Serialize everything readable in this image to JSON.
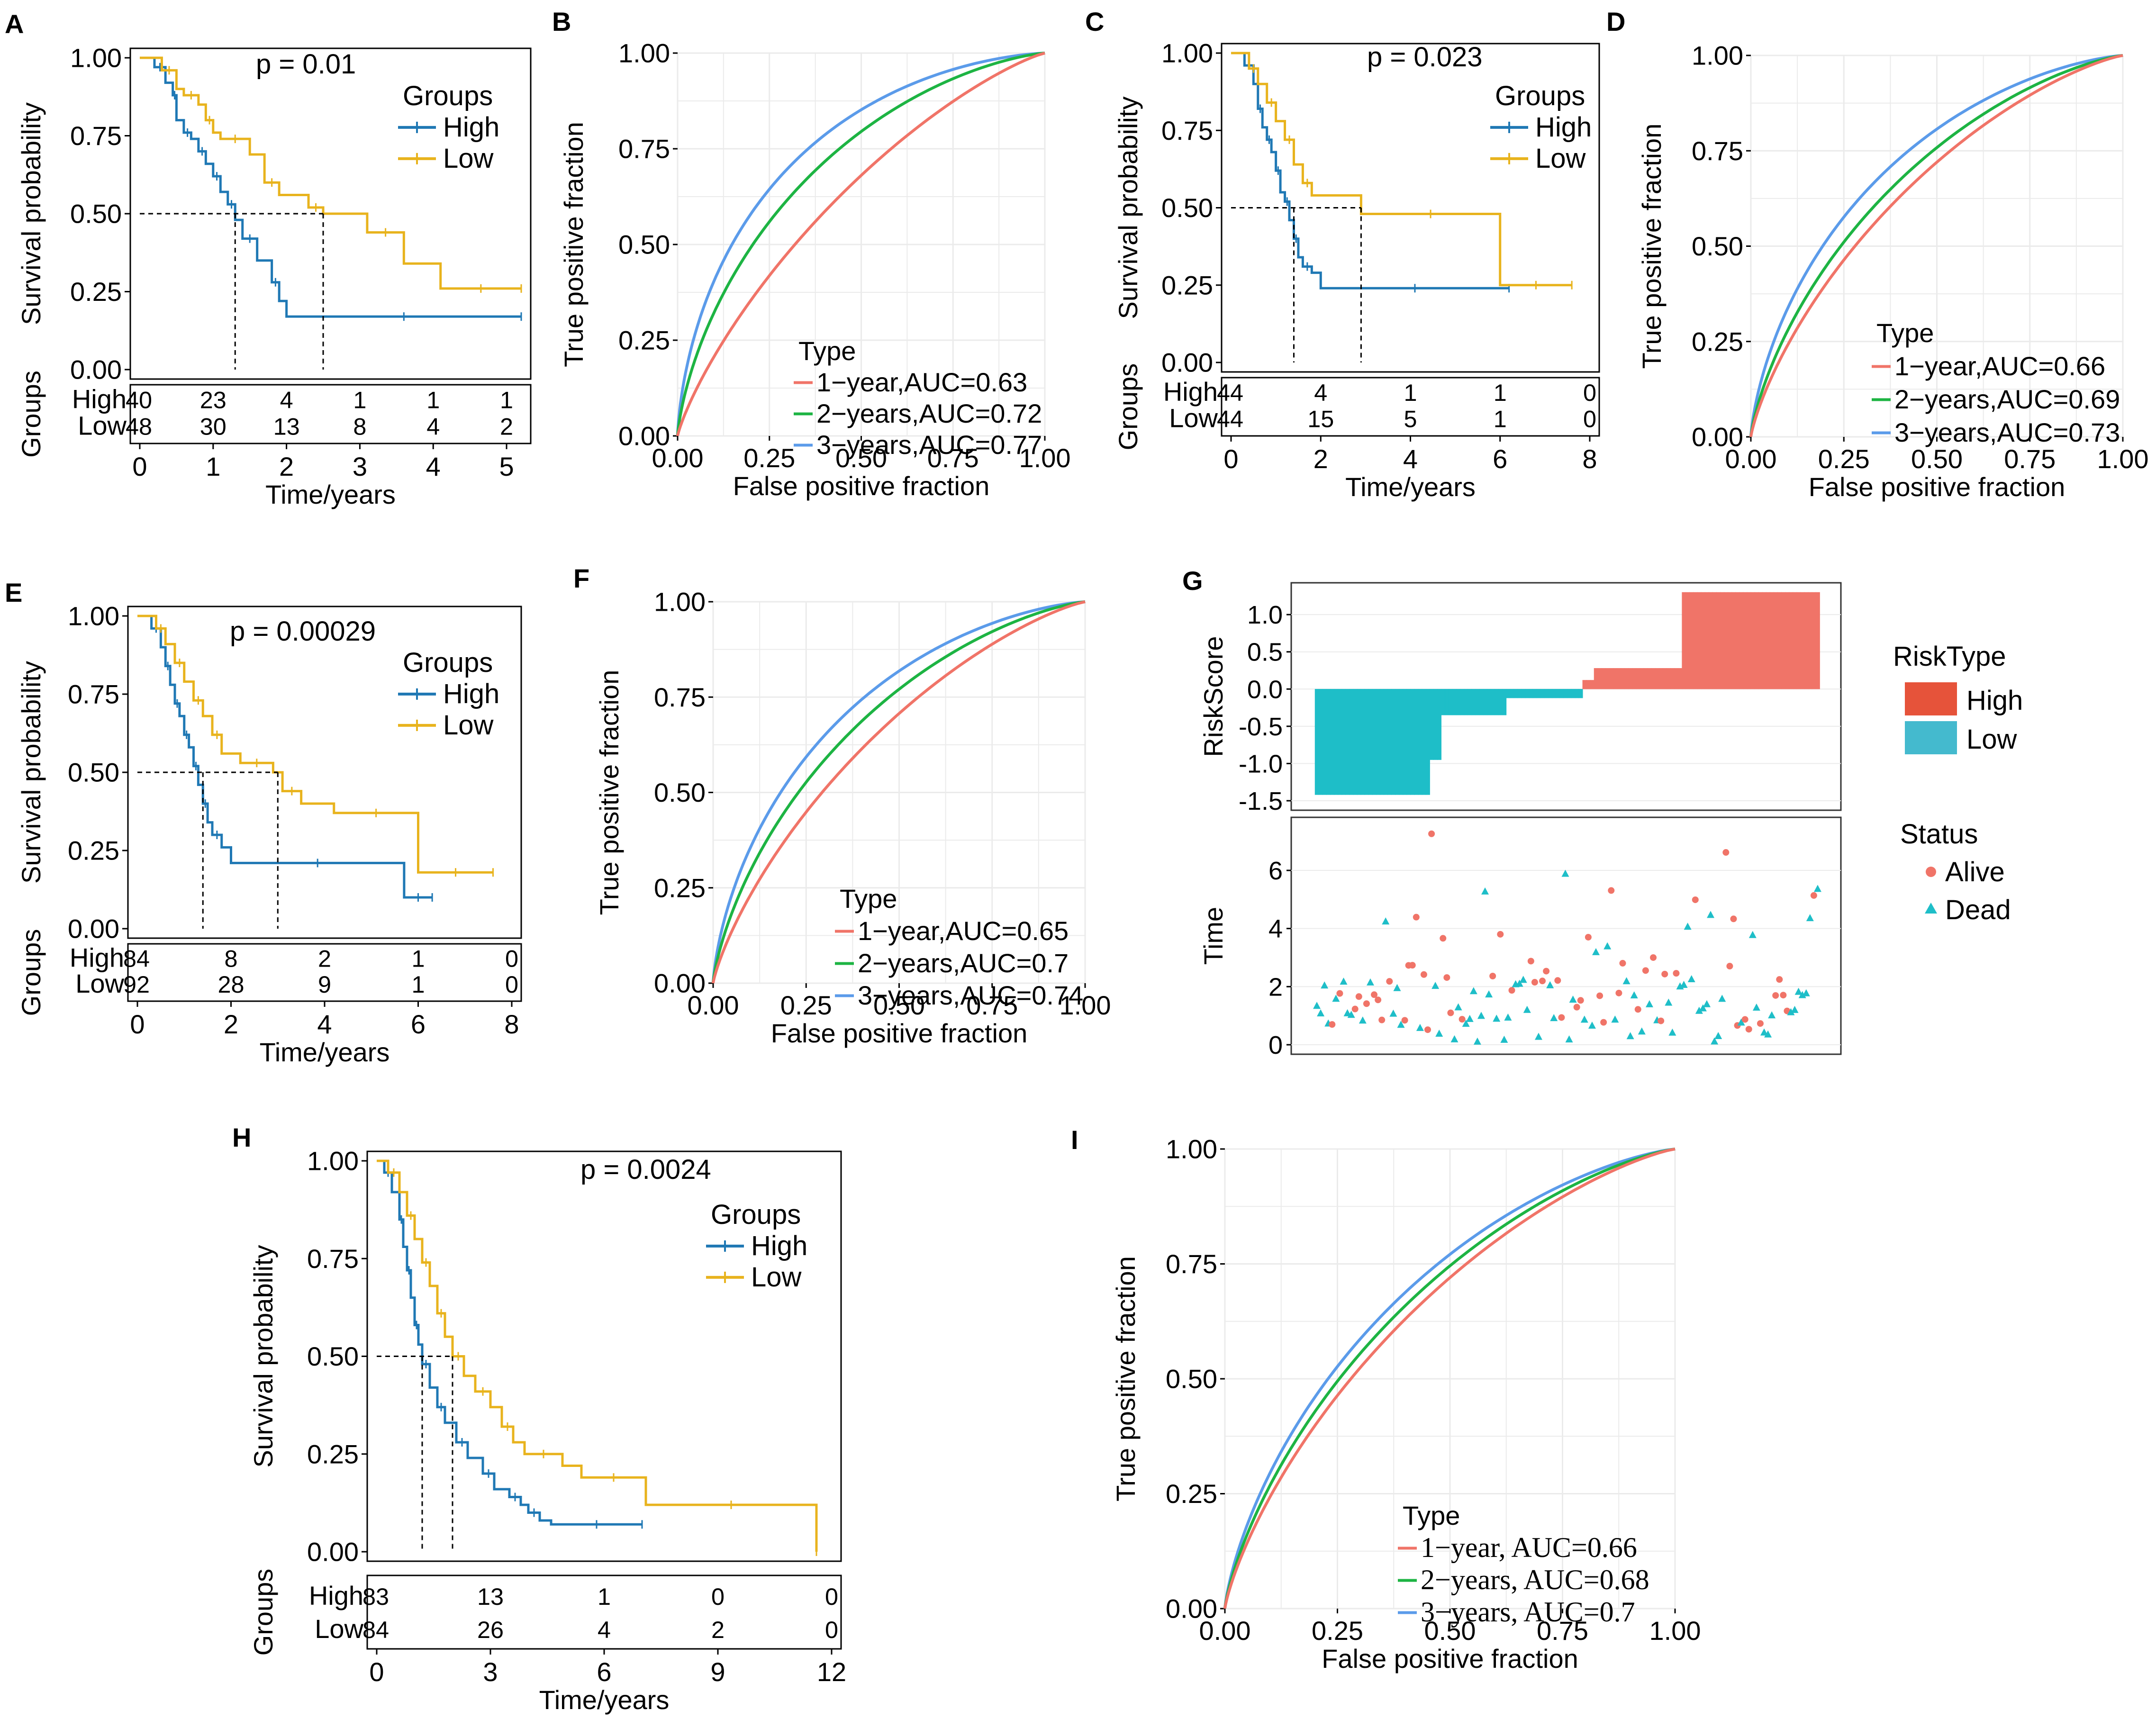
{
  "colors": {
    "high": "#1F78B4",
    "low": "#E8B31D",
    "roc1": "#F07468",
    "roc2": "#1DB443",
    "roc3": "#5B9BEA",
    "risk_high": "#F07468",
    "risk_low": "#1EBEC8",
    "legend_high": "#E6533A",
    "legend_low": "#44BACE",
    "grid": "#EBEBEB"
  },
  "common": {
    "surv_ylabel": "Survival probability",
    "time_xlabel": "Time/years",
    "risk_table_label": "Groups",
    "roc_xlabel": "False positive fraction",
    "roc_ylabel": "True positive fraction",
    "groups_title": "Groups",
    "type_title": "Type",
    "high": "High",
    "low": "Low",
    "yticks": [
      "0.00",
      "0.25",
      "0.50",
      "0.75",
      "1.00"
    ]
  },
  "chart_data": [
    {
      "panel": "A",
      "type": "line",
      "title": "p = 0.01",
      "xlabel": "Time/years",
      "ylabel": "Survival probability",
      "xlim": [
        0,
        5.2
      ],
      "ylim": [
        0,
        1
      ],
      "xticks": [
        "0",
        "1",
        "2",
        "3",
        "4",
        "5"
      ],
      "median_high": 1.3,
      "median_low": 2.5,
      "series": [
        {
          "name": "High",
          "points": [
            [
              0,
              1
            ],
            [
              0.2,
              0.97
            ],
            [
              0.35,
              0.92
            ],
            [
              0.45,
              0.88
            ],
            [
              0.5,
              0.8
            ],
            [
              0.6,
              0.76
            ],
            [
              0.7,
              0.74
            ],
            [
              0.8,
              0.7
            ],
            [
              0.9,
              0.66
            ],
            [
              1.0,
              0.62
            ],
            [
              1.1,
              0.57
            ],
            [
              1.2,
              0.53
            ],
            [
              1.3,
              0.48
            ],
            [
              1.4,
              0.42
            ],
            [
              1.6,
              0.35
            ],
            [
              1.8,
              0.28
            ],
            [
              1.9,
              0.22
            ],
            [
              2.0,
              0.17
            ],
            [
              5.2,
              0.17
            ]
          ]
        },
        {
          "name": "Low",
          "points": [
            [
              0,
              1
            ],
            [
              0.3,
              0.96
            ],
            [
              0.5,
              0.9
            ],
            [
              0.6,
              0.88
            ],
            [
              0.8,
              0.85
            ],
            [
              0.9,
              0.8
            ],
            [
              1.0,
              0.76
            ],
            [
              1.1,
              0.74
            ],
            [
              1.5,
              0.69
            ],
            [
              1.7,
              0.6
            ],
            [
              1.9,
              0.56
            ],
            [
              2.3,
              0.52
            ],
            [
              2.5,
              0.5
            ],
            [
              3.1,
              0.44
            ],
            [
              3.6,
              0.34
            ],
            [
              4.1,
              0.26
            ],
            [
              5.2,
              0.26
            ]
          ]
        }
      ],
      "risk_table": {
        "High": [
          "40",
          "23",
          "4",
          "1",
          "1",
          "1"
        ],
        "Low": [
          "48",
          "30",
          "13",
          "8",
          "4",
          "2"
        ]
      }
    },
    {
      "panel": "B",
      "type": "line",
      "title": "",
      "xlabel": "False positive fraction",
      "ylabel": "True positive fraction",
      "xlim": [
        0,
        1
      ],
      "ylim": [
        0,
        1
      ],
      "xticks": [
        "0.00",
        "0.25",
        "0.50",
        "0.75",
        "1.00"
      ],
      "font": "sans",
      "series": [
        {
          "name": "1-year",
          "label": "1−year,AUC=0.63",
          "auc": 0.63
        },
        {
          "name": "2-years",
          "label": "2−years,AUC=0.72",
          "auc": 0.72
        },
        {
          "name": "3-years",
          "label": "3−years,AUC=0.77",
          "auc": 0.77
        }
      ]
    },
    {
      "panel": "C",
      "type": "line",
      "title": "p = 0.023",
      "xlabel": "Time/years",
      "ylabel": "Survival probability",
      "xlim": [
        0,
        8
      ],
      "ylim": [
        0,
        1
      ],
      "xticks": [
        "0",
        "2",
        "4",
        "6",
        "8"
      ],
      "median_high": 1.4,
      "median_low": 2.9,
      "series": [
        {
          "name": "High",
          "points": [
            [
              0,
              1
            ],
            [
              0.3,
              0.96
            ],
            [
              0.5,
              0.9
            ],
            [
              0.6,
              0.82
            ],
            [
              0.7,
              0.76
            ],
            [
              0.8,
              0.72
            ],
            [
              0.9,
              0.68
            ],
            [
              1.0,
              0.62
            ],
            [
              1.1,
              0.55
            ],
            [
              1.2,
              0.52
            ],
            [
              1.3,
              0.46
            ],
            [
              1.4,
              0.4
            ],
            [
              1.5,
              0.34
            ],
            [
              1.6,
              0.31
            ],
            [
              1.8,
              0.29
            ],
            [
              2.0,
              0.24
            ],
            [
              6.2,
              0.24
            ]
          ]
        },
        {
          "name": "Low",
          "points": [
            [
              0,
              1
            ],
            [
              0.4,
              0.95
            ],
            [
              0.6,
              0.9
            ],
            [
              0.8,
              0.84
            ],
            [
              1.0,
              0.78
            ],
            [
              1.2,
              0.72
            ],
            [
              1.4,
              0.64
            ],
            [
              1.6,
              0.58
            ],
            [
              1.8,
              0.54
            ],
            [
              2.9,
              0.48
            ],
            [
              6.0,
              0.48
            ],
            [
              6.0,
              0.25
            ],
            [
              7.6,
              0.25
            ]
          ]
        }
      ],
      "risk_table": {
        "High": [
          "44",
          "4",
          "1",
          "1",
          "0"
        ],
        "Low": [
          "44",
          "15",
          "5",
          "1",
          "0"
        ]
      }
    },
    {
      "panel": "D",
      "type": "line",
      "title": "",
      "xlabel": "False positive fraction",
      "ylabel": "True positive fraction",
      "xlim": [
        0,
        1
      ],
      "ylim": [
        0,
        1
      ],
      "xticks": [
        "0.00",
        "0.25",
        "0.50",
        "0.75",
        "1.00"
      ],
      "font": "sans",
      "series": [
        {
          "name": "1-year",
          "label": "1−year,AUC=0.66",
          "auc": 0.66
        },
        {
          "name": "2-years",
          "label": "2−years,AUC=0.69",
          "auc": 0.69
        },
        {
          "name": "3-years",
          "label": "3−years,AUC=0.73",
          "auc": 0.73
        }
      ]
    },
    {
      "panel": "E",
      "type": "line",
      "title": "p = 0.00029",
      "xlabel": "Time/years",
      "ylabel": "Survival probability",
      "xlim": [
        0,
        8
      ],
      "ylim": [
        0,
        1
      ],
      "xticks": [
        "0",
        "2",
        "4",
        "6",
        "8"
      ],
      "median_high": 1.4,
      "median_low": 3.0,
      "series": [
        {
          "name": "High",
          "points": [
            [
              0,
              1
            ],
            [
              0.3,
              0.96
            ],
            [
              0.5,
              0.9
            ],
            [
              0.6,
              0.84
            ],
            [
              0.7,
              0.78
            ],
            [
              0.8,
              0.72
            ],
            [
              0.9,
              0.68
            ],
            [
              1.0,
              0.62
            ],
            [
              1.1,
              0.58
            ],
            [
              1.2,
              0.52
            ],
            [
              1.3,
              0.46
            ],
            [
              1.4,
              0.4
            ],
            [
              1.5,
              0.34
            ],
            [
              1.6,
              0.3
            ],
            [
              1.8,
              0.26
            ],
            [
              2.0,
              0.21
            ],
            [
              5.7,
              0.21
            ],
            [
              5.7,
              0.1
            ],
            [
              6.3,
              0.1
            ]
          ]
        },
        {
          "name": "Low",
          "points": [
            [
              0,
              1
            ],
            [
              0.4,
              0.96
            ],
            [
              0.6,
              0.91
            ],
            [
              0.8,
              0.85
            ],
            [
              1.0,
              0.79
            ],
            [
              1.2,
              0.73
            ],
            [
              1.4,
              0.68
            ],
            [
              1.6,
              0.62
            ],
            [
              1.8,
              0.56
            ],
            [
              2.2,
              0.53
            ],
            [
              2.9,
              0.5
            ],
            [
              3.1,
              0.44
            ],
            [
              3.5,
              0.4
            ],
            [
              4.2,
              0.37
            ],
            [
              6.0,
              0.37
            ],
            [
              6.0,
              0.18
            ],
            [
              7.6,
              0.18
            ]
          ]
        }
      ],
      "risk_table": {
        "High": [
          "84",
          "8",
          "2",
          "1",
          "0"
        ],
        "Low": [
          "92",
          "28",
          "9",
          "1",
          "0"
        ]
      }
    },
    {
      "panel": "F",
      "type": "line",
      "title": "",
      "xlabel": "False positive fraction",
      "ylabel": "True positive fraction",
      "xlim": [
        0,
        1
      ],
      "ylim": [
        0,
        1
      ],
      "xticks": [
        "0.00",
        "0.25",
        "0.50",
        "0.75",
        "1.00"
      ],
      "font": "sans",
      "series": [
        {
          "name": "1-year",
          "label": "1−year,AUC=0.65",
          "auc": 0.65
        },
        {
          "name": "2-years",
          "label": "2−years,AUC=0.7",
          "auc": 0.7
        },
        {
          "name": "3-years",
          "label": "3−years,AUC=0.74",
          "auc": 0.74
        }
      ]
    },
    {
      "panel": "G",
      "type": "bar",
      "title": "",
      "risk": {
        "ylabel": "RiskScore",
        "ylim": [
          -1.5,
          1.3
        ],
        "yticks": [
          "1.0",
          "0.5",
          "0.0",
          "-0.5",
          "-1.0",
          "-1.5"
        ],
        "steps": [
          {
            "start": 0,
            "end": 30,
            "value": -1.42
          },
          {
            "start": 30,
            "end": 33,
            "value": -0.95
          },
          {
            "start": 33,
            "end": 50,
            "value": -0.35
          },
          {
            "start": 50,
            "end": 70,
            "value": -0.12
          },
          {
            "start": 70,
            "end": 73,
            "value": 0.12
          },
          {
            "start": 73,
            "end": 96,
            "value": 0.28
          },
          {
            "start": 96,
            "end": 132,
            "value": 1.3
          }
        ],
        "n": 132,
        "legend_title": "RiskType"
      },
      "status": {
        "ylabel": "Time",
        "ylim": [
          -0.3,
          7.8
        ],
        "yticks": [
          "6",
          "4",
          "2",
          "0"
        ],
        "legend_title": "Status",
        "alive": "Alive",
        "dead": "Dead"
      }
    },
    {
      "panel": "H",
      "type": "line",
      "title": "p = 0.0024",
      "xlabel": "Time/years",
      "ylabel": "Survival probability",
      "xlim": [
        0,
        12
      ],
      "ylim": [
        0,
        1
      ],
      "xticks": [
        "0",
        "3",
        "6",
        "9",
        "12"
      ],
      "median_high": 1.2,
      "median_low": 2.0,
      "series": [
        {
          "name": "High",
          "points": [
            [
              0,
              1
            ],
            [
              0.2,
              0.97
            ],
            [
              0.4,
              0.92
            ],
            [
              0.6,
              0.85
            ],
            [
              0.7,
              0.78
            ],
            [
              0.8,
              0.72
            ],
            [
              0.9,
              0.65
            ],
            [
              1.0,
              0.58
            ],
            [
              1.1,
              0.53
            ],
            [
              1.2,
              0.48
            ],
            [
              1.4,
              0.42
            ],
            [
              1.6,
              0.37
            ],
            [
              1.8,
              0.33
            ],
            [
              2.1,
              0.28
            ],
            [
              2.4,
              0.24
            ],
            [
              2.8,
              0.2
            ],
            [
              3.1,
              0.16
            ],
            [
              3.5,
              0.14
            ],
            [
              3.8,
              0.12
            ],
            [
              4.0,
              0.1
            ],
            [
              4.3,
              0.08
            ],
            [
              4.6,
              0.07
            ],
            [
              7.0,
              0.07
            ]
          ]
        },
        {
          "name": "Low",
          "points": [
            [
              0,
              1
            ],
            [
              0.3,
              0.97
            ],
            [
              0.6,
              0.92
            ],
            [
              0.8,
              0.86
            ],
            [
              1.0,
              0.8
            ],
            [
              1.2,
              0.74
            ],
            [
              1.4,
              0.68
            ],
            [
              1.6,
              0.61
            ],
            [
              1.8,
              0.55
            ],
            [
              2.0,
              0.5
            ],
            [
              2.3,
              0.45
            ],
            [
              2.6,
              0.41
            ],
            [
              3.0,
              0.37
            ],
            [
              3.3,
              0.32
            ],
            [
              3.6,
              0.28
            ],
            [
              3.9,
              0.25
            ],
            [
              4.9,
              0.22
            ],
            [
              5.4,
              0.19
            ],
            [
              7.1,
              0.19
            ],
            [
              7.1,
              0.12
            ],
            [
              11.6,
              0.12
            ],
            [
              11.6,
              0.0
            ]
          ]
        }
      ],
      "risk_table": {
        "High": [
          "83",
          "13",
          "1",
          "0",
          "0"
        ],
        "Low": [
          "84",
          "26",
          "4",
          "2",
          "0"
        ]
      }
    },
    {
      "panel": "I",
      "type": "line",
      "title": "",
      "xlabel": "False positive fraction",
      "ylabel": "True positive fraction",
      "xlim": [
        0,
        1
      ],
      "ylim": [
        0,
        1
      ],
      "xticks": [
        "0.00",
        "0.25",
        "0.50",
        "0.75",
        "1.00"
      ],
      "font": "serif",
      "series": [
        {
          "name": "1-year",
          "label": "1−year, AUC=0.66",
          "auc": 0.66
        },
        {
          "name": "2-years",
          "label": "2−years, AUC=0.68",
          "auc": 0.68
        },
        {
          "name": "3-years",
          "label": "3−years, AUC=0.7",
          "auc": 0.7
        }
      ]
    }
  ]
}
